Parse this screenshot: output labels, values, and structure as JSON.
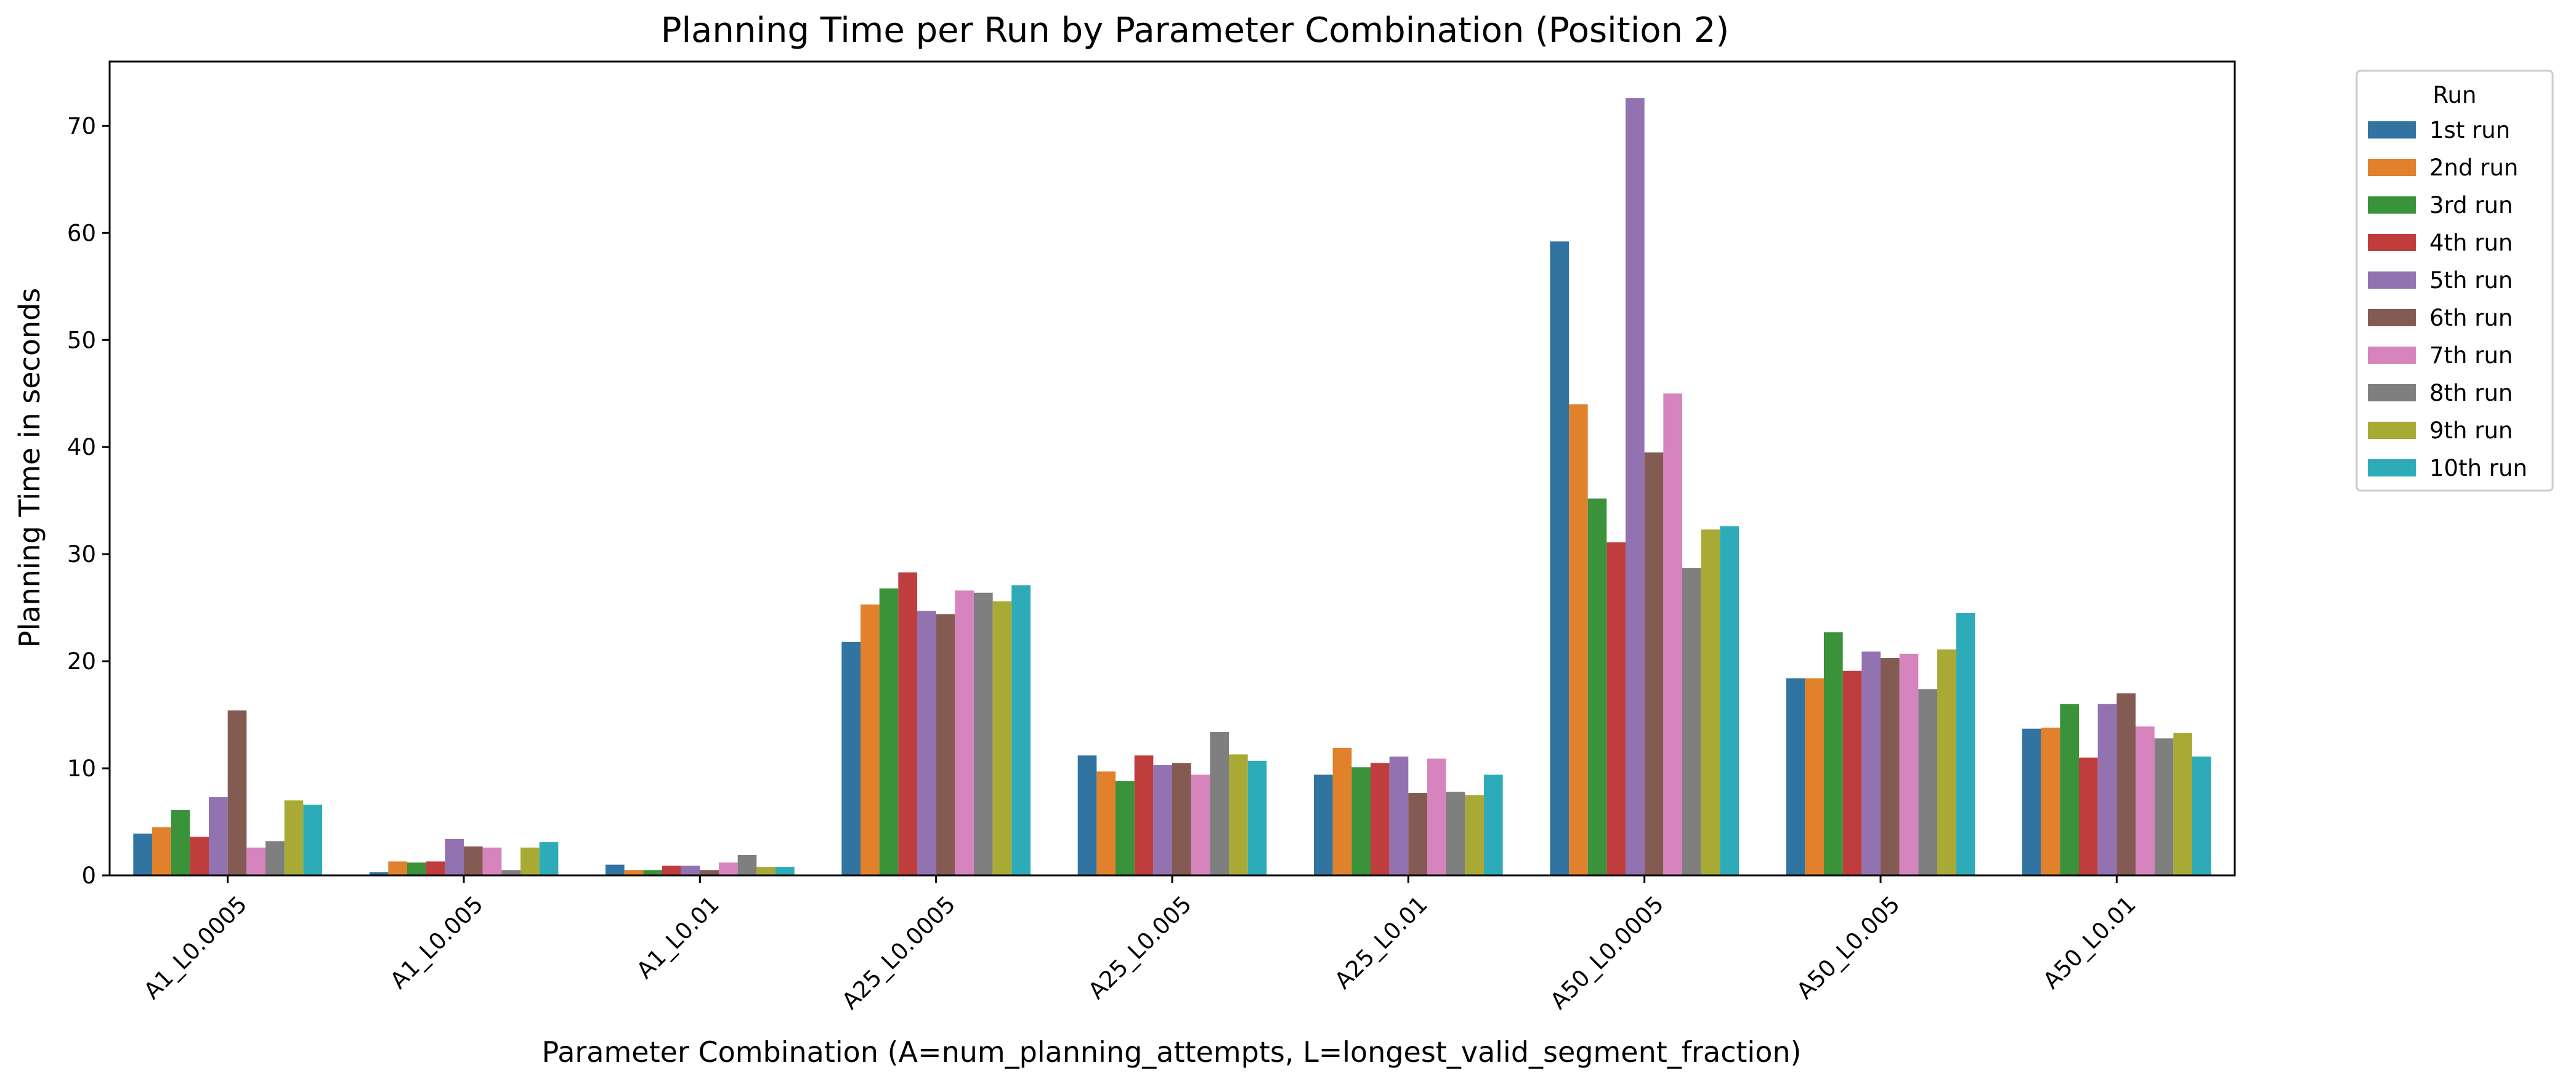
{
  "chart_data": {
    "type": "bar",
    "title": "Planning Time per Run by Parameter Combination (Position 2)",
    "xlabel": "Parameter Combination (A=num_planning_attempts, L=longest_valid_segment_fraction)",
    "ylabel": "Planning Time in seconds",
    "ylim": [
      0,
      76
    ],
    "yticks": [
      0,
      10,
      20,
      30,
      40,
      50,
      60,
      70
    ],
    "categories": [
      "A1_L0.0005",
      "A1_L0.005",
      "A1_L0.01",
      "A25_L0.0005",
      "A25_L0.005",
      "A25_L0.01",
      "A50_L0.0005",
      "A50_L0.005",
      "A50_L0.01"
    ],
    "legend": {
      "title": "Run",
      "placement": "outside-top-right"
    },
    "grid": false,
    "series": [
      {
        "name": "1st run",
        "color": "#3274a1",
        "values": [
          3.9,
          0.3,
          1.0,
          21.8,
          11.2,
          9.4,
          59.2,
          18.4,
          13.7
        ]
      },
      {
        "name": "2nd run",
        "color": "#e1812c",
        "values": [
          4.5,
          1.3,
          0.5,
          25.3,
          9.7,
          11.9,
          44.0,
          18.4,
          13.8
        ]
      },
      {
        "name": "3rd run",
        "color": "#3a923a",
        "values": [
          6.1,
          1.2,
          0.5,
          26.8,
          8.8,
          10.1,
          35.2,
          22.7,
          16.0
        ]
      },
      {
        "name": "4th run",
        "color": "#c03d3e",
        "values": [
          3.6,
          1.3,
          0.9,
          28.3,
          11.2,
          10.5,
          31.1,
          19.1,
          11.0
        ]
      },
      {
        "name": "5th run",
        "color": "#9372b2",
        "values": [
          7.3,
          3.4,
          0.9,
          24.7,
          10.3,
          11.1,
          72.6,
          20.9,
          16.0
        ]
      },
      {
        "name": "6th run",
        "color": "#845b53",
        "values": [
          15.4,
          2.7,
          0.5,
          24.4,
          10.5,
          7.7,
          39.5,
          20.3,
          17.0
        ]
      },
      {
        "name": "7th run",
        "color": "#d684bd",
        "values": [
          2.6,
          2.6,
          1.2,
          26.6,
          9.4,
          10.9,
          45.0,
          20.7,
          13.9
        ]
      },
      {
        "name": "8th run",
        "color": "#7f7f7f",
        "values": [
          3.2,
          0.5,
          1.9,
          26.4,
          13.4,
          7.8,
          28.7,
          17.4,
          12.8
        ]
      },
      {
        "name": "9th run",
        "color": "#a9aa35",
        "values": [
          7.0,
          2.6,
          0.8,
          25.6,
          11.3,
          7.5,
          32.3,
          21.1,
          13.3
        ]
      },
      {
        "name": "10th run",
        "color": "#2eabb8",
        "values": [
          6.6,
          3.1,
          0.8,
          27.1,
          10.7,
          9.4,
          32.6,
          24.5,
          11.1
        ]
      }
    ]
  }
}
